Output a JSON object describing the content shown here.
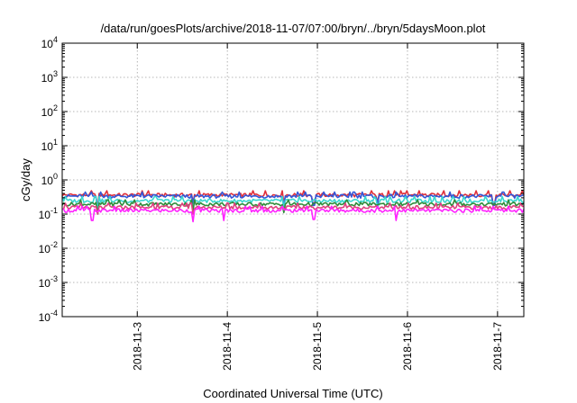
{
  "chart_data": {
    "type": "line",
    "title": "/data/run/goesPlots/archive/2018-11-07/07:00/bryn/../bryn/5daysMoon.plot",
    "xlabel": "Coordinated Universal Time (UTC)",
    "ylabel": "cGy/day",
    "yscale": "log",
    "ylim": [
      0.0001,
      10000
    ],
    "xlim": [
      "2018-11-02 04:00",
      "2018-11-07 07:00"
    ],
    "x_ticks": [
      "2018-11-3",
      "2018-11-4",
      "2018-11-5",
      "2018-11-6",
      "2018-11-7"
    ],
    "y_ticks": [
      {
        "base": "10",
        "exp": "-4",
        "value": 0.0001
      },
      {
        "base": "10",
        "exp": "-3",
        "value": 0.001
      },
      {
        "base": "10",
        "exp": "-2",
        "value": 0.01
      },
      {
        "base": "10",
        "exp": "-1",
        "value": 0.1
      },
      {
        "base": "10",
        "exp": "0",
        "value": 1
      },
      {
        "base": "10",
        "exp": "1",
        "value": 10
      },
      {
        "base": "10",
        "exp": "2",
        "value": 100
      },
      {
        "base": "10",
        "exp": "3",
        "value": 1000
      },
      {
        "base": "10",
        "exp": "4",
        "value": 10000
      }
    ],
    "grid": true,
    "legend": "none",
    "x_start": "2018-11-02 04:00",
    "x_end": "2018-11-07 07:00",
    "series": [
      {
        "color": "#e0303a",
        "level": 0.37,
        "dips": [
          {
            "x": "2018-11-02 13:30",
            "value": 0.16
          },
          {
            "x": "2018-11-03 15:00",
            "value": 0.22
          },
          {
            "x": "2018-11-04 15:00",
            "value": 0.2
          },
          {
            "x": "2018-11-04 23:00",
            "value": 0.2
          },
          {
            "x": "2018-11-05 16:00",
            "value": 0.22
          },
          {
            "x": "2018-11-06 23:00",
            "value": 0.2
          }
        ]
      },
      {
        "color": "#3357d8",
        "level": 0.34,
        "dips": [
          {
            "x": "2018-11-02 13:30",
            "value": 0.14
          },
          {
            "x": "2018-11-03 15:00",
            "value": 0.2
          },
          {
            "x": "2018-11-04 15:00",
            "value": 0.18
          },
          {
            "x": "2018-11-04 23:00",
            "value": 0.18
          },
          {
            "x": "2018-11-05 16:00",
            "value": 0.2
          },
          {
            "x": "2018-11-06 23:00",
            "value": 0.18
          }
        ]
      },
      {
        "color": "#3ad7d0",
        "level": 0.25,
        "dips": [
          {
            "x": "2018-11-02 13:30",
            "value": 0.12
          },
          {
            "x": "2018-11-03 15:00",
            "value": 0.15
          },
          {
            "x": "2018-11-04 15:00",
            "value": 0.14
          },
          {
            "x": "2018-11-05 16:00",
            "value": 0.15
          }
        ]
      },
      {
        "color": "#2f8c3a",
        "level": 0.2,
        "dips": [
          {
            "x": "2018-11-02 13:30",
            "value": 0.1
          },
          {
            "x": "2018-11-03 15:00",
            "value": 0.12
          },
          {
            "x": "2018-11-04 15:00",
            "value": 0.11
          }
        ]
      },
      {
        "color": "#e04080",
        "level": 0.16,
        "dips": [
          {
            "x": "2018-11-02 13:30",
            "value": 0.1
          },
          {
            "x": "2018-11-03 15:00",
            "value": 0.1
          }
        ]
      },
      {
        "color": "#ff22ff",
        "level": 0.13,
        "dips": [
          {
            "x": "2018-11-02 12:00",
            "value": 0.065
          },
          {
            "x": "2018-11-03 15:00",
            "value": 0.06
          },
          {
            "x": "2018-11-03 23:00",
            "value": 0.065
          },
          {
            "x": "2018-11-04 23:00",
            "value": 0.07
          },
          {
            "x": "2018-11-05 21:00",
            "value": 0.065
          }
        ]
      }
    ]
  }
}
